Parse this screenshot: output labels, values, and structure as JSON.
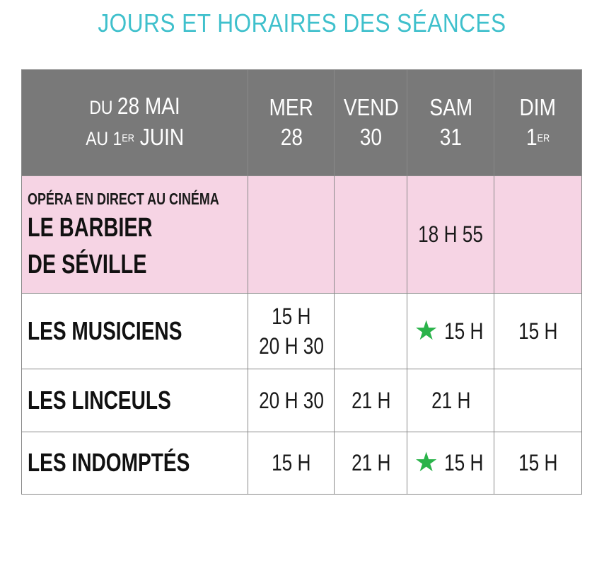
{
  "title": "JOURS ET HORAIRES DES SÉANCES",
  "header": {
    "period_line1_a": "DU ",
    "period_line1_b": "28 MAI",
    "period_line2_a": "AU 1",
    "period_line2_sup": "ER",
    "period_line2_b": " JUIN",
    "days": [
      {
        "name": "MER",
        "num": "28",
        "sup": ""
      },
      {
        "name": "VEND",
        "num": "30",
        "sup": ""
      },
      {
        "name": "SAM",
        "num": "31",
        "sup": ""
      },
      {
        "name": "DIM",
        "num": "1",
        "sup": "ER"
      }
    ]
  },
  "rows": [
    {
      "kicker": "OPÉRA EN DIRECT AU CINÉMA",
      "title_line1": "LE BARBIER",
      "title_line2": "DE SÉVILLE",
      "times": [
        "",
        "",
        "18 H 55",
        ""
      ]
    },
    {
      "title": "LES MUSICIENS",
      "times": [
        "15 H",
        "",
        "15 H",
        "15 H"
      ],
      "times_line2": [
        "20 H 30",
        "",
        "",
        ""
      ]
    },
    {
      "title": "LES LINCEULS",
      "times": [
        "20 H 30",
        "21 H",
        "21 H",
        ""
      ]
    },
    {
      "title": "LES INDOMPTÉS",
      "times": [
        "15 H",
        "21 H",
        "15 H",
        "15 H"
      ]
    }
  ],
  "colors": {
    "accent": "#3fc0cc",
    "header_bg": "#797979",
    "highlight_row": "#f6d4e4",
    "star": "#2ab34a"
  },
  "icons": {
    "star": "star-icon"
  }
}
